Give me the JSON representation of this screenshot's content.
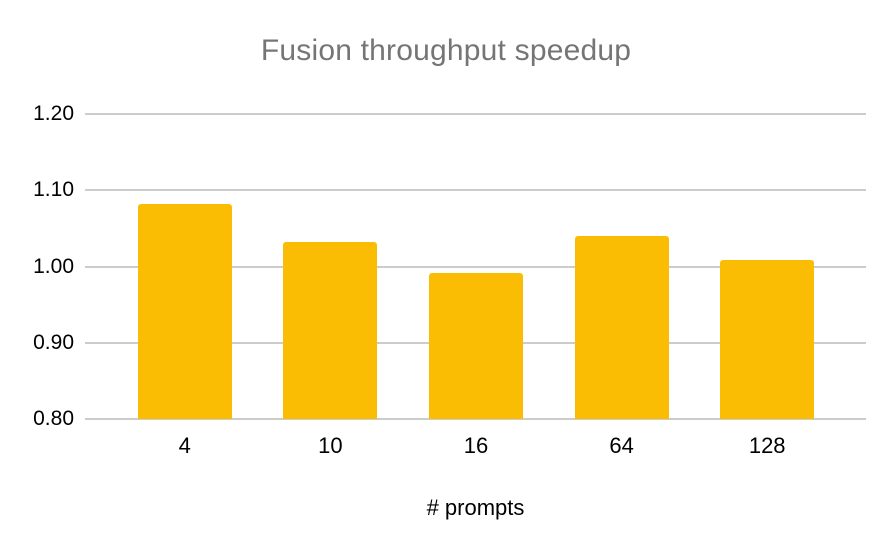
{
  "page": {
    "background": "#ffffff"
  },
  "chart_data": {
    "type": "bar",
    "title": "Fusion throughput speedup",
    "xlabel": "# prompts",
    "ylabel": "",
    "categories": [
      "4",
      "10",
      "16",
      "64",
      "128"
    ],
    "values": [
      1.082,
      1.032,
      0.992,
      1.04,
      1.008
    ],
    "ylim": [
      0.8,
      1.2
    ],
    "yticks": [
      {
        "value": 1.2,
        "label": "1.20"
      },
      {
        "value": 1.1,
        "label": "1.10"
      },
      {
        "value": 1.0,
        "label": "1.00"
      },
      {
        "value": 0.9,
        "label": "0.90"
      },
      {
        "value": 0.8,
        "label": "0.80"
      }
    ],
    "grid": "horizontal",
    "legend": "none",
    "colors": {
      "bar": "#FBBC04",
      "title_text": "#757575",
      "axis_text": "#000000",
      "gridline": "#cccccc"
    }
  }
}
